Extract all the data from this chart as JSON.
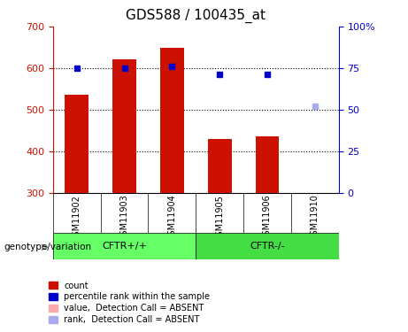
{
  "title": "GDS588 / 100435_at",
  "samples": [
    "GSM11902",
    "GSM11903",
    "GSM11904",
    "GSM11905",
    "GSM11906",
    "GSM11910"
  ],
  "groups": [
    "CFTR+/+",
    "CFTR+/+",
    "CFTR+/+",
    "CFTR-/-",
    "CFTR-/-",
    "CFTR-/-"
  ],
  "group_labels": [
    "CFTR+/+",
    "CFTR-/-"
  ],
  "group_colors": [
    "#66ff66",
    "#33dd33"
  ],
  "bar_values": [
    535,
    622,
    649,
    430,
    435,
    300
  ],
  "bar_color": "#cc1100",
  "absent_bar_color": "#ffaaaa",
  "rank_values": [
    75,
    75,
    76,
    71,
    71,
    null
  ],
  "rank_absent": [
    null,
    null,
    null,
    null,
    null,
    52
  ],
  "rank_color": "#0000cc",
  "rank_absent_color": "#aaaaee",
  "absent_flags": [
    false,
    false,
    false,
    false,
    false,
    true
  ],
  "ylim_left": [
    300,
    700
  ],
  "ylim_right": [
    0,
    100
  ],
  "yticks_left": [
    300,
    400,
    500,
    600,
    700
  ],
  "yticks_right": [
    0,
    25,
    50,
    75,
    100
  ],
  "ytick_labels_right": [
    "0",
    "25",
    "50",
    "75",
    "100%"
  ],
  "grid_values": [
    400,
    500,
    600
  ],
  "xlabel": "genotype/variation",
  "left_axis_color": "#cc1100",
  "right_axis_color": "#0000cc",
  "legend_items": [
    {
      "label": "count",
      "color": "#cc1100",
      "absent": false
    },
    {
      "label": "percentile rank within the sample",
      "color": "#0000cc",
      "absent": false
    },
    {
      "label": "value,  Detection Call = ABSENT",
      "color": "#ffaaaa",
      "absent": false
    },
    {
      "label": "rank,  Detection Call = ABSENT",
      "color": "#aaaaee",
      "absent": false
    }
  ]
}
